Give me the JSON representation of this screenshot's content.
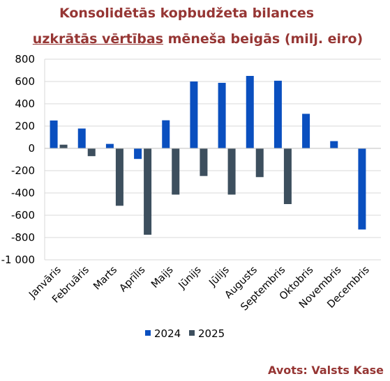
{
  "title": {
    "line1": "Konsolidētās kopbudžeta bilances",
    "line2_underlined": "uzkrātās vērtības",
    "line2_rest": " mēneša beigās (milj. eiro)"
  },
  "source": "Avots: Valsts Kase",
  "colors": {
    "s2024": "#0a4fbf",
    "s2025": "#3d4f5e",
    "title": "#963634"
  },
  "chart_data": {
    "type": "bar",
    "categories": [
      "Janvāris",
      "Februāris",
      "Marts",
      "Aprīlis",
      "Maijs",
      "Jūnijs",
      "Jūlijs",
      "Augusts",
      "Septembris",
      "Oktobris",
      "Novembris",
      "Decembris"
    ],
    "series": [
      {
        "name": "2024",
        "values": [
          250,
          178,
          40,
          -95,
          252,
          600,
          588,
          650,
          607,
          310,
          65,
          -728
        ]
      },
      {
        "name": "2025",
        "values": [
          33,
          -70,
          -515,
          -775,
          -415,
          -248,
          -415,
          -258,
          -500,
          null,
          null,
          null
        ]
      }
    ],
    "ylim": [
      -1000,
      800
    ],
    "yticks": [
      -1000,
      -800,
      -600,
      -400,
      -200,
      0,
      200,
      400,
      600,
      800
    ],
    "ytick_labels": [
      "-1 000",
      "-800",
      "-600",
      "-400",
      "-200",
      "0",
      "200",
      "400",
      "600",
      "800"
    ],
    "grid": true,
    "legend": "bottom"
  }
}
